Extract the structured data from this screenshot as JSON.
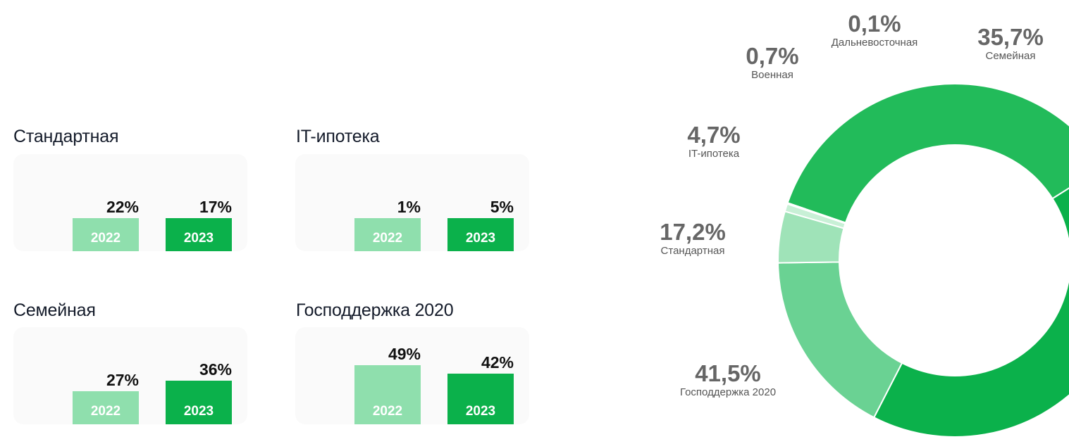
{
  "chart_data": [
    {
      "type": "bar",
      "title": "Стандартная",
      "categories": [
        "2022",
        "2023"
      ],
      "values": [
        22,
        17
      ],
      "value_labels": [
        "22%",
        "17%"
      ],
      "colors": [
        "#8fdfad",
        "#0bb14b"
      ]
    },
    {
      "type": "bar",
      "title": "IT-ипотека",
      "categories": [
        "2022",
        "2023"
      ],
      "values": [
        1,
        5
      ],
      "value_labels": [
        "1%",
        "5%"
      ],
      "colors": [
        "#8fdfad",
        "#0bb14b"
      ]
    },
    {
      "type": "bar",
      "title": "Семейная",
      "categories": [
        "2022",
        "2023"
      ],
      "values": [
        27,
        36
      ],
      "value_labels": [
        "27%",
        "36%"
      ],
      "colors": [
        "#8fdfad",
        "#0bb14b"
      ]
    },
    {
      "type": "bar",
      "title": "Господдержка 2020",
      "categories": [
        "2022",
        "2023"
      ],
      "values": [
        49,
        42
      ],
      "value_labels": [
        "49%",
        "42%"
      ],
      "colors": [
        "#8fdfad",
        "#0bb14b"
      ]
    },
    {
      "type": "pie",
      "donut": true,
      "slices": [
        {
          "name": "Семейная",
          "value": 35.7,
          "label": "35,7%",
          "color": "#22bb5a"
        },
        {
          "name": "Господдержка 2020",
          "value": 41.5,
          "label": "41,5%",
          "color": "#0bb14b"
        },
        {
          "name": "Стандартная",
          "value": 17.2,
          "label": "17,2%",
          "color": "#6ad293"
        },
        {
          "name": "IT-ипотека",
          "value": 4.7,
          "label": "4,7%",
          "color": "#9fe3b8"
        },
        {
          "name": "Военная",
          "value": 0.7,
          "label": "0,7%",
          "color": "#c8f0d6"
        },
        {
          "name": "Дальневосточная",
          "value": 0.1,
          "label": "0,1%",
          "color": "#e6f8ec"
        }
      ]
    }
  ]
}
